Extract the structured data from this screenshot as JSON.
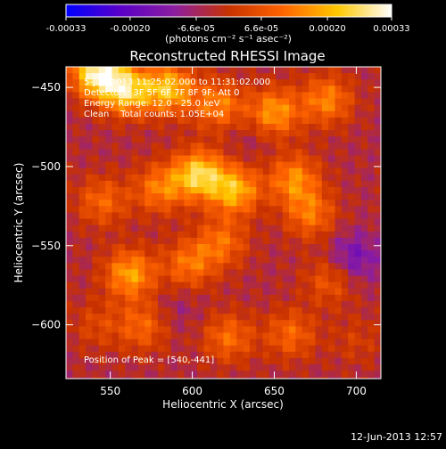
{
  "colorbar": {
    "ticks": [
      "-0.00033",
      "-0.00020",
      "-6.6e-05",
      "6.6e-05",
      "0.00020",
      "0.00033"
    ],
    "tick_values": [
      -0.00033,
      -0.0002,
      -6.6e-05,
      6.6e-05,
      0.0002,
      0.00033
    ],
    "range": [
      -0.00033,
      0.00033
    ],
    "unit_label": "(photons cm⁻² s⁻¹ asec⁻²)",
    "colors": [
      "#0000ff",
      "#5a00c8",
      "#8c1ea0",
      "#c83200",
      "#ff6400",
      "#ffc800",
      "#ffffff"
    ]
  },
  "chart_data": {
    "type": "heatmap",
    "title": "Reconstructed RHESSI Image",
    "xlabel": "Heliocentric X (arcsec)",
    "ylabel": "Heliocentric Y (arcsec)",
    "xlim": [
      523,
      715
    ],
    "ylim": [
      -634,
      -437
    ],
    "xticks": [
      550,
      600,
      650,
      700
    ],
    "yticks": [
      -450,
      -500,
      -550,
      -600
    ],
    "info_lines": [
      "5-Jun-2013 11:25:02.000 to 11:31:02.000",
      "Detectors: 3F 5F 6F 7F 8F 9F; Att 0",
      "Energy Range: 12.0 - 25.0 keV",
      "Clean    Total counts: 1.05E+04"
    ],
    "peak_label": "Position of Peak = [540,-441]",
    "peak": [
      540,
      -441
    ],
    "blobs": [
      {
        "x": 542,
        "y": -441,
        "value": 0.00033
      },
      {
        "x": 560,
        "y": -452,
        "value": 0.00027
      },
      {
        "x": 586,
        "y": -451,
        "value": 0.00025
      },
      {
        "x": 616,
        "y": -461,
        "value": 0.00018
      },
      {
        "x": 650,
        "y": -466,
        "value": 0.00021
      },
      {
        "x": 682,
        "y": -458,
        "value": 0.00018
      },
      {
        "x": 604,
        "y": -505,
        "value": 0.00028
      },
      {
        "x": 626,
        "y": -515,
        "value": 0.00024
      },
      {
        "x": 580,
        "y": -514,
        "value": 0.00017
      },
      {
        "x": 545,
        "y": -522,
        "value": 0.00014
      },
      {
        "x": 662,
        "y": -508,
        "value": 0.00019
      },
      {
        "x": 672,
        "y": -530,
        "value": 0.00016
      },
      {
        "x": 618,
        "y": -548,
        "value": 0.00015
      },
      {
        "x": 562,
        "y": -568,
        "value": 0.00022
      },
      {
        "x": 598,
        "y": -562,
        "value": 0.00016
      },
      {
        "x": 684,
        "y": -572,
        "value": 0.00012
      },
      {
        "x": 570,
        "y": -601,
        "value": 0.00014
      },
      {
        "x": 622,
        "y": -608,
        "value": 0.00015
      },
      {
        "x": 660,
        "y": -606,
        "value": 0.00014
      },
      {
        "x": 542,
        "y": -600,
        "value": 8e-05
      },
      {
        "x": 700,
        "y": -610,
        "value": 6e-05
      }
    ],
    "dips": [
      {
        "x": 698,
        "y": -558,
        "value": -0.00012
      },
      {
        "x": 636,
        "y": -482,
        "value": -3e-05
      },
      {
        "x": 590,
        "y": -590,
        "value": -4e-05
      }
    ]
  },
  "footer": {
    "date": "12-Jun-2013 12:57"
  }
}
